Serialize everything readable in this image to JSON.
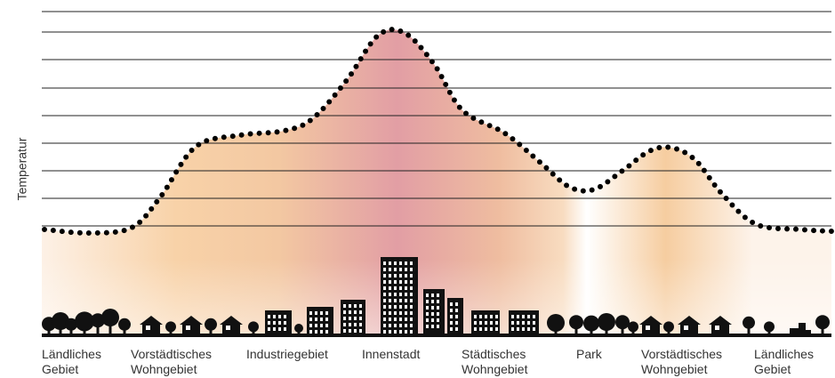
{
  "y_axis_label": "Temperatur",
  "zones": [
    {
      "lines": [
        "Ländliches",
        "Gebiet"
      ]
    },
    {
      "lines": [
        "Vorstädtisches",
        "Wohngebiet"
      ]
    },
    {
      "lines": [
        "Industriegebiet"
      ]
    },
    {
      "lines": [
        "Innenstadt"
      ]
    },
    {
      "lines": [
        "Städtisches",
        "Wohngebiet"
      ]
    },
    {
      "lines": [
        "Park"
      ]
    },
    {
      "lines": [
        "Vorstädtisches",
        "Wohngebiet"
      ]
    },
    {
      "lines": [
        "Ländliches",
        "Gebiet"
      ]
    }
  ]
}
